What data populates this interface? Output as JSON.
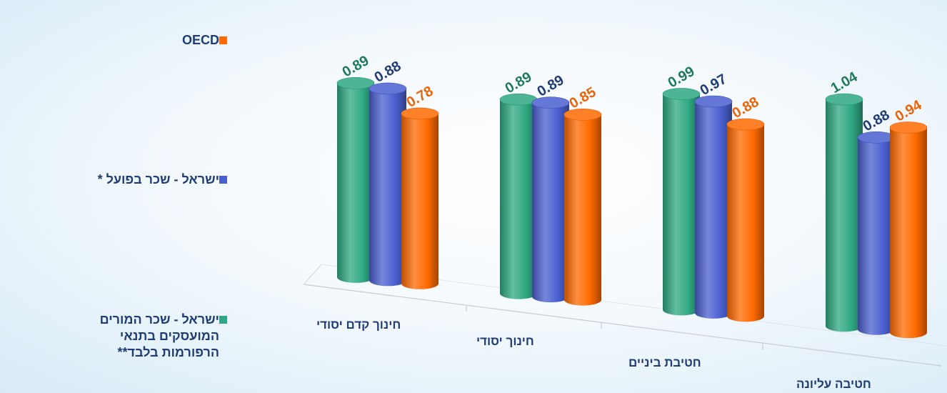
{
  "chart_data": {
    "type": "bar",
    "categories": [
      "חינוך קדם יסודי",
      "חינוך יסודי",
      "חטיבת ביניים",
      "חטיבה עליונה"
    ],
    "series": [
      {
        "name": "ישראל - שכר המורים המועסקים בתנאי הרפורמות בלבד**",
        "color": "#2ea882",
        "values": [
          0.89,
          0.89,
          0.99,
          1.04
        ]
      },
      {
        "name": "ישראל - שכר בפועל *",
        "color": "#4a5fcf",
        "values": [
          0.88,
          0.89,
          0.97,
          0.88
        ]
      },
      {
        "name": "OECD",
        "color": "#ff6a00",
        "values": [
          0.78,
          0.85,
          0.88,
          0.94
        ]
      }
    ],
    "value_label_colors": [
      "#1f7a5c",
      "#1f3d73",
      "#e8640a"
    ],
    "legend_order": [
      2,
      1,
      0
    ],
    "legend_position": "left"
  }
}
